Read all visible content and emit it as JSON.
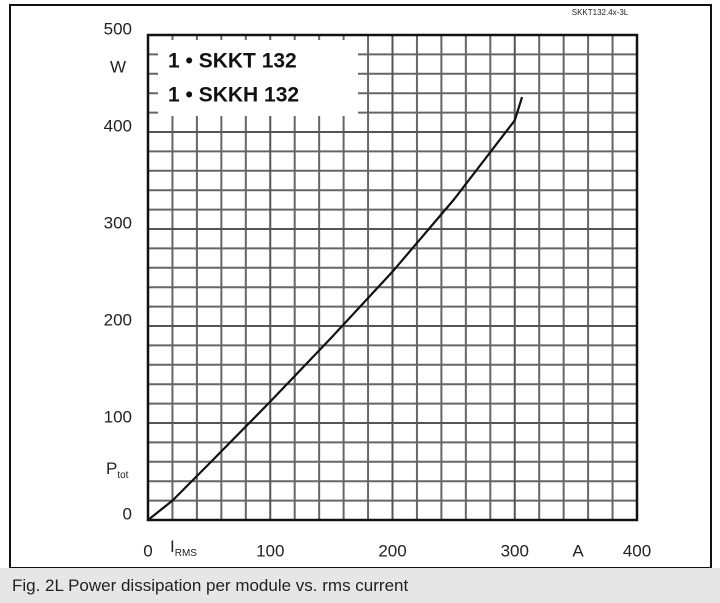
{
  "chart_data": {
    "type": "line",
    "code": "SKKT132.4x-3L",
    "legend_lines": [
      "1 • SKKT 132",
      "1 • SKKH 132"
    ],
    "xlabel": "I",
    "xlabel_sub": "RMS",
    "xunit": "A",
    "ylabel": "P",
    "ylabel_sub": "tot",
    "yunit": "W",
    "x": [
      0,
      20,
      50,
      100,
      150,
      200,
      250,
      300,
      306
    ],
    "series": [
      {
        "color": "#111111",
        "values": [
          0,
          20,
          58,
          122,
          188,
          256,
          330,
          412,
          436
        ]
      }
    ],
    "xlim": [
      0,
      400
    ],
    "xticks": [
      0,
      100,
      200,
      300,
      400
    ],
    "ylim": [
      0,
      500
    ],
    "yticks": [
      0,
      100,
      200,
      300,
      400,
      500
    ],
    "grid": true,
    "grid_subdivisions": 5,
    "caption": "Fig. 2L Power dissipation per module vs. rms current"
  }
}
